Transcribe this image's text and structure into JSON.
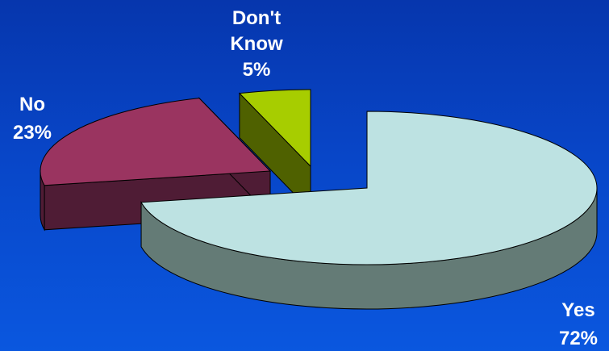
{
  "chart_data": {
    "type": "pie",
    "style": "3d-exploded",
    "categories": [
      "Yes",
      "No",
      "Don't Know"
    ],
    "values": [
      72,
      23,
      5
    ],
    "labels": [
      {
        "category": "Yes",
        "text_lines": [
          "Yes",
          "72%"
        ]
      },
      {
        "category": "No",
        "text_lines": [
          "No",
          "23%"
        ]
      },
      {
        "category": "Don't Know",
        "text_lines": [
          "Don't",
          "Know",
          "5%"
        ]
      }
    ],
    "colors": {
      "Yes": {
        "top": "#bde2e2",
        "side": "#647b76"
      },
      "No": {
        "top": "#9a3460",
        "side": "#4f1c35"
      },
      "Don't Know": {
        "top": "#a7cd00",
        "side": "#4f6100"
      }
    },
    "background_color": "#0846c8",
    "legend": "none",
    "title": ""
  }
}
